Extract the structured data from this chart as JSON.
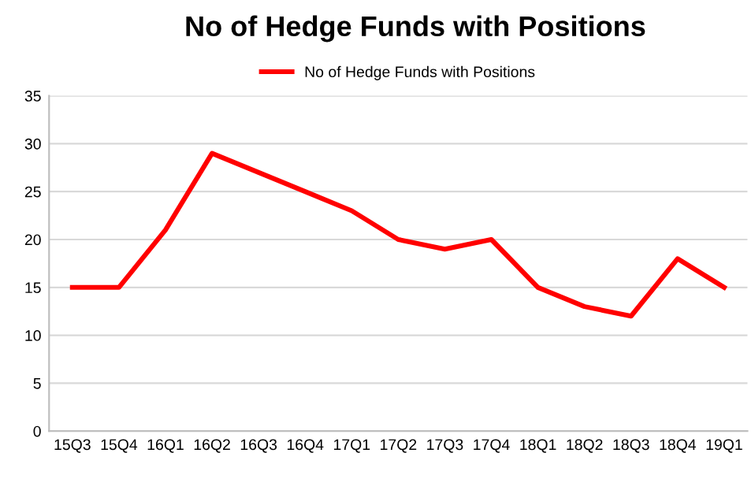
{
  "chart_data": {
    "type": "line",
    "title": "No of Hedge Funds with Positions",
    "categories": [
      "15Q3",
      "15Q4",
      "16Q1",
      "16Q2",
      "16Q3",
      "16Q4",
      "17Q1",
      "17Q2",
      "17Q3",
      "17Q4",
      "18Q1",
      "18Q2",
      "18Q3",
      "18Q4",
      "19Q1"
    ],
    "series": [
      {
        "name": "No of Hedge Funds with Positions",
        "color": "#ff0000",
        "values": [
          15,
          15,
          21,
          29,
          27,
          25,
          23,
          20,
          19,
          20,
          15,
          13,
          12,
          18,
          15
        ]
      }
    ],
    "ylim": [
      0,
      35
    ],
    "yticks": [
      0,
      5,
      10,
      15,
      20,
      25,
      30,
      35
    ],
    "grid": "y",
    "legend": "top",
    "marker": "none",
    "line_style": "solid"
  }
}
